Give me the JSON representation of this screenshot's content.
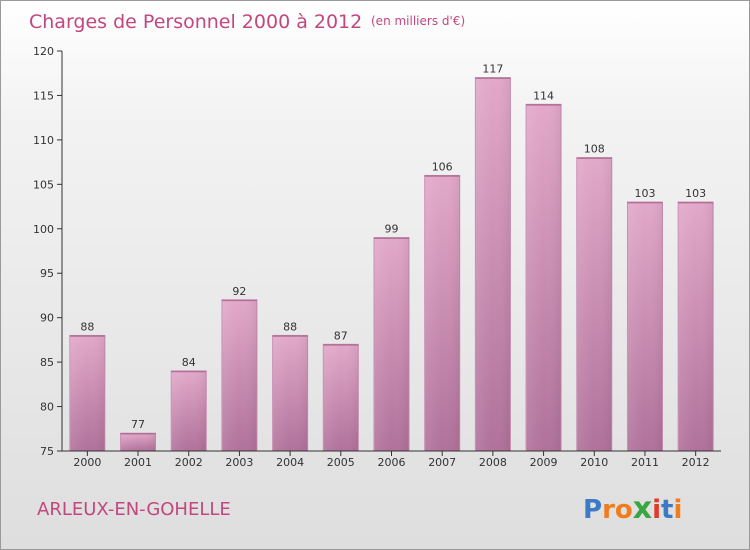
{
  "chart_data": {
    "type": "bar",
    "title": "Charges de Personnel 2000 à 2012",
    "subtitle": "(en milliers d'€)",
    "categories": [
      "2000",
      "2001",
      "2002",
      "2003",
      "2004",
      "2005",
      "2006",
      "2007",
      "2008",
      "2009",
      "2010",
      "2011",
      "2012"
    ],
    "values": [
      88,
      77,
      84,
      92,
      88,
      87,
      99,
      106,
      117,
      114,
      108,
      103,
      103
    ],
    "ylim": [
      75,
      120
    ],
    "yticks": [
      75,
      80,
      85,
      90,
      95,
      100,
      105,
      110,
      115,
      120
    ],
    "xlabel": "",
    "ylabel": "",
    "grid": false,
    "bar_color": "#d995bd",
    "bar_color_dark": "#b06f96"
  },
  "place_name": "ARLEUX-EN-GOHELLE",
  "logo": {
    "text": "Proxiti",
    "letters": [
      {
        "ch": "P",
        "color": "#3d7ac6"
      },
      {
        "ch": "r",
        "color": "#f07c1d"
      },
      {
        "ch": "o",
        "color": "#f07c1d"
      },
      {
        "ch": "x",
        "color": "#3aa642"
      },
      {
        "ch": "i",
        "color": "#e23a2a"
      },
      {
        "ch": "t",
        "color": "#3d7ac6"
      },
      {
        "ch": "i",
        "color": "#f07c1d"
      }
    ]
  },
  "colors": {
    "title": "#c2477f",
    "axis": "#333333",
    "label_text": "#333333",
    "place_name": "#c2477f"
  }
}
